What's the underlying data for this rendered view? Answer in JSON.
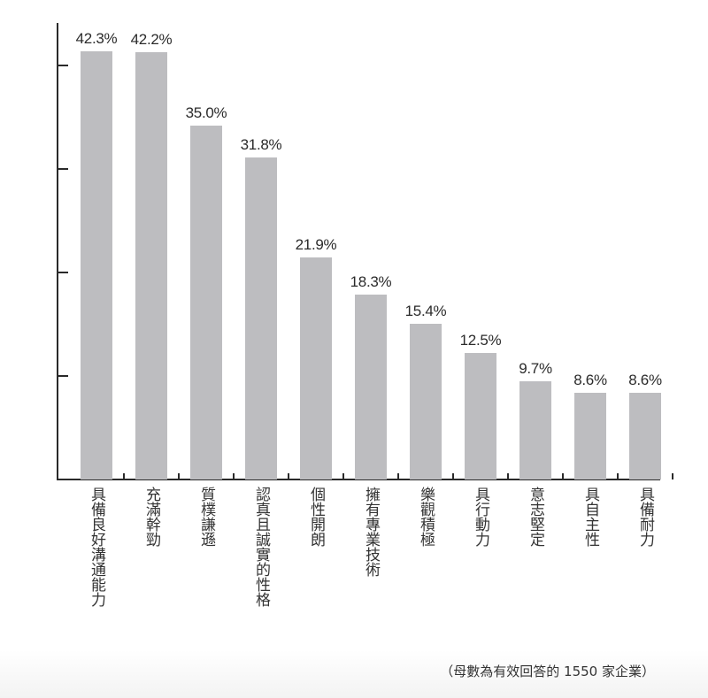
{
  "chart_data": {
    "type": "bar",
    "title": "",
    "xlabel": "",
    "ylabel": "",
    "categories": [
      "具備良好溝通能力",
      "充滿幹勁",
      "質樸謙遜",
      "認真且誠實的性格",
      "個性開朗",
      "擁有專業技術",
      "樂觀積極",
      "具行動力",
      "意志堅定",
      "具自主性",
      "具備耐力"
    ],
    "values": [
      42.3,
      42.2,
      35.0,
      31.8,
      21.9,
      18.3,
      15.4,
      12.5,
      9.7,
      8.6,
      8.6
    ],
    "value_labels": [
      "42.3%",
      "42.2%",
      "35.0%",
      "31.8%",
      "21.9%",
      "18.3%",
      "15.4%",
      "12.5%",
      "9.7%",
      "8.6%",
      "8.6%"
    ],
    "unit": "%",
    "ylim": [
      0,
      45
    ],
    "y_ticks": [
      10,
      20,
      30,
      40
    ],
    "y_tick_labels_shown": false,
    "grid": false,
    "legend": null,
    "bar_color": "#bdbdc0",
    "axis_color": "#2a2a2a",
    "annotation": "（母數為有效回答的 1550 家企業）"
  },
  "footnote": "（母數為有效回答的 1550 家企業）"
}
